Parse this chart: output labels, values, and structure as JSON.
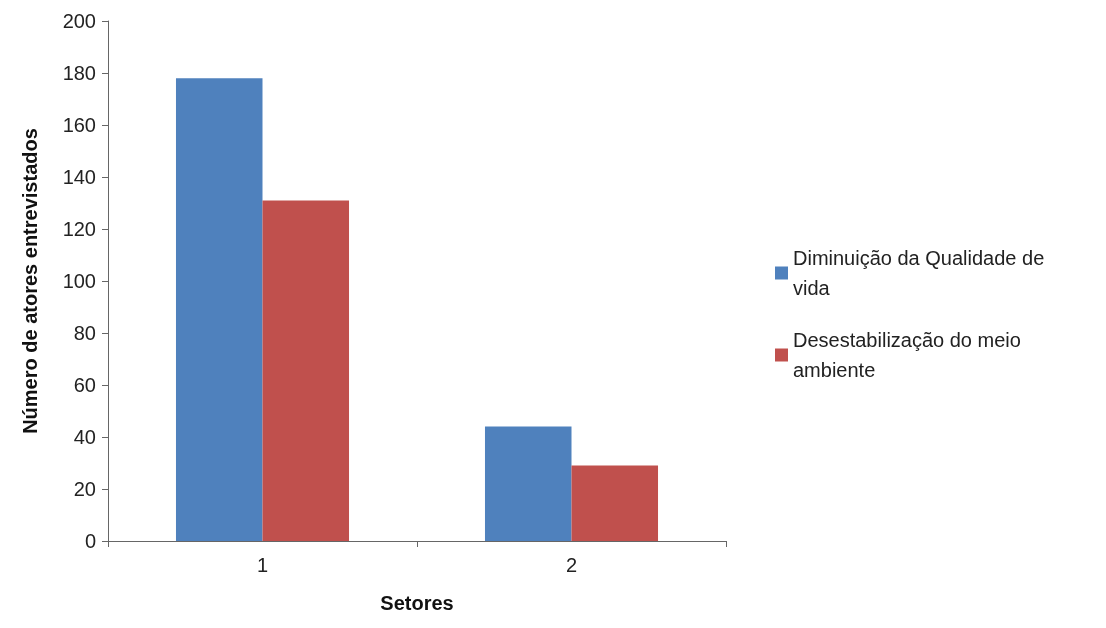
{
  "chart_data": {
    "type": "bar",
    "xlabel": "Setores",
    "ylabel": "Número de atores entrevistados",
    "categories": [
      "1",
      "2"
    ],
    "series": [
      {
        "name": "Diminuição da Qualidade de vida",
        "color": "#4f81bd",
        "values": [
          178,
          44
        ]
      },
      {
        "name": "Desestabilização do meio ambiente",
        "color": "#c0504d",
        "values": [
          131,
          29
        ]
      }
    ],
    "ylim": [
      0,
      200
    ],
    "yticks": [
      0,
      20,
      40,
      60,
      80,
      100,
      120,
      140,
      160,
      180,
      200
    ],
    "grid": false,
    "legend": "right"
  }
}
